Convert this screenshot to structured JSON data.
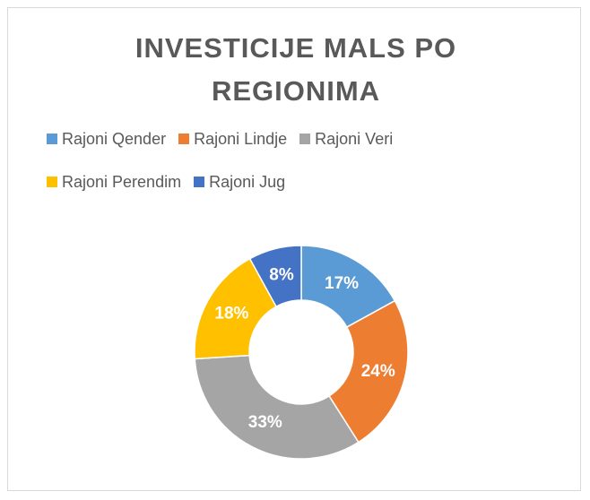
{
  "chart_data": {
    "type": "pie",
    "title": "INVESTICIJE MALS PO REGIONIMA",
    "categories": [
      "Rajoni Qender",
      "Rajoni Lindje",
      "Rajoni Veri",
      "Rajoni Perendim",
      "Rajoni Jug"
    ],
    "values": [
      17,
      24,
      33,
      18,
      8
    ],
    "value_labels": [
      "17%",
      "24%",
      "33%",
      "18%",
      "8%"
    ],
    "colors": [
      "#5b9bd5",
      "#ed7d31",
      "#a5a5a5",
      "#ffc000",
      "#4472c4"
    ],
    "donut": true,
    "legend": "top"
  }
}
